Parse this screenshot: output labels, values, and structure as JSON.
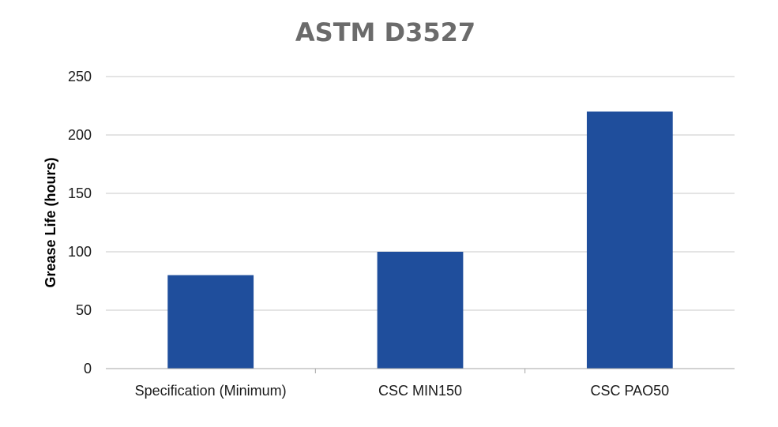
{
  "chart_data": {
    "type": "bar",
    "title": "ASTM D3527",
    "xlabel": "",
    "ylabel": "Grease Life (hours)",
    "categories": [
      "Specification (Minimum)",
      "CSC MIN150",
      "CSC PAO50"
    ],
    "values": [
      80,
      100,
      220
    ],
    "ylim": [
      0,
      250
    ],
    "yticks": [
      0,
      50,
      100,
      150,
      200,
      250
    ],
    "grid": true,
    "legend": "none",
    "bar_color": "#1f4e9c"
  }
}
